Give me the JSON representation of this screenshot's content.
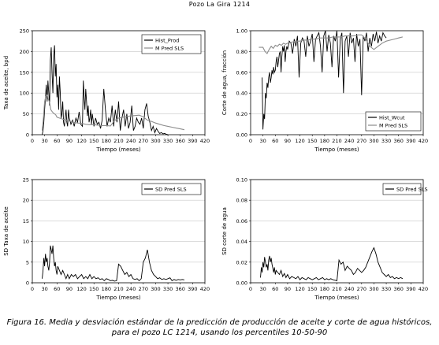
{
  "page": {
    "title": "Pozo La Gira 1214",
    "caption_line1": "Figura 16. Media y desviación estándar de la predicción de producción de aceite y corte de agua históricos,",
    "caption_line2": "para el pozo LC 1214, usando los percentiles 10-50-90"
  },
  "colors": {
    "hist": "#000000",
    "pred": "#8c8c8c",
    "grid": "#c8c8c8"
  },
  "chart_data": [
    {
      "type": "line",
      "xlabel": "Tiempo (meses)",
      "ylabel": "Taxa de aceite, bpd",
      "xlim": [
        0,
        420
      ],
      "ylim": [
        0,
        250
      ],
      "xticks": [
        0,
        30,
        60,
        90,
        120,
        150,
        180,
        210,
        240,
        270,
        300,
        330,
        360,
        390,
        420
      ],
      "yticks": [
        0,
        50,
        100,
        150,
        200,
        250
      ],
      "ytick_labels": [
        "0",
        "50",
        "100",
        "150",
        "200",
        "250"
      ],
      "legend": "top-right",
      "series": [
        {
          "name": "Hist_Prod",
          "color": "#000000",
          "x": [
            24,
            26,
            28,
            30,
            32,
            34,
            36,
            38,
            40,
            42,
            44,
            46,
            48,
            50,
            52,
            54,
            56,
            58,
            60,
            62,
            64,
            66,
            68,
            70,
            72,
            74,
            76,
            78,
            80,
            82,
            84,
            86,
            88,
            90,
            94,
            98,
            102,
            106,
            110,
            114,
            118,
            122,
            124,
            126,
            128,
            130,
            132,
            134,
            136,
            138,
            140,
            142,
            144,
            146,
            148,
            150,
            154,
            158,
            162,
            166,
            170,
            174,
            178,
            182,
            186,
            190,
            194,
            198,
            202,
            206,
            210,
            214,
            218,
            222,
            226,
            230,
            234,
            238,
            242,
            246,
            250,
            254,
            258,
            262,
            266,
            270,
            274,
            278,
            282,
            286,
            290,
            294,
            298,
            302,
            306,
            310,
            314,
            318,
            322,
            326,
            330
          ],
          "y": [
            0,
            10,
            30,
            60,
            90,
            120,
            80,
            130,
            100,
            70,
            180,
            210,
            150,
            100,
            190,
            215,
            140,
            170,
            90,
            120,
            60,
            140,
            100,
            40,
            50,
            80,
            30,
            20,
            40,
            60,
            30,
            20,
            60,
            40,
            25,
            35,
            20,
            40,
            30,
            55,
            25,
            20,
            130,
            90,
            60,
            110,
            80,
            45,
            70,
            30,
            40,
            60,
            25,
            50,
            35,
            20,
            40,
            25,
            30,
            15,
            35,
            110,
            60,
            20,
            40,
            30,
            70,
            20,
            60,
            30,
            80,
            10,
            40,
            60,
            20,
            50,
            15,
            30,
            70,
            10,
            20,
            40,
            30,
            25,
            40,
            15,
            60,
            75,
            45,
            30,
            10,
            20,
            5,
            15,
            8,
            3,
            5,
            2,
            3,
            1,
            0
          ]
        },
        {
          "name": "M Pred SLS",
          "color": "#8c8c8c",
          "x": [
            24,
            27,
            30,
            33,
            36,
            39,
            42,
            45,
            48,
            51,
            54,
            57,
            60,
            66,
            72,
            78,
            84,
            90,
            100,
            110,
            120,
            130,
            140,
            150,
            160,
            170,
            180,
            190,
            200,
            210,
            220,
            230,
            240,
            250,
            260,
            270,
            280,
            290,
            300,
            310,
            320,
            330,
            340,
            350,
            360,
            370
          ],
          "y": [
            10,
            40,
            80,
            93,
            95,
            85,
            78,
            60,
            56,
            52,
            50,
            48,
            42,
            40,
            38,
            36,
            35,
            33,
            30,
            28,
            27,
            25,
            24,
            24,
            23,
            22,
            22,
            21,
            34,
            40,
            42,
            44,
            45,
            46,
            47,
            43,
            35,
            32,
            28,
            25,
            22,
            20,
            18,
            16,
            14,
            12
          ]
        }
      ]
    },
    {
      "type": "line",
      "xlabel": "Tiempo (meses)",
      "ylabel": "Corte de agua, fracción",
      "xlim": [
        0,
        420
      ],
      "ylim": [
        0,
        1
      ],
      "xticks": [
        0,
        30,
        60,
        90,
        120,
        150,
        180,
        210,
        240,
        270,
        300,
        330,
        360,
        390,
        420
      ],
      "yticks": [
        0,
        0.2,
        0.4,
        0.6,
        0.8,
        1.0
      ],
      "ytick_labels": [
        "0.00",
        "0.20",
        "0.40",
        "0.60",
        "0.80",
        "1.00"
      ],
      "legend": "bottom-right",
      "series": [
        {
          "name": "Hist_Wcut",
          "color": "#000000",
          "x": [
            28,
            30,
            32,
            34,
            36,
            38,
            40,
            42,
            44,
            46,
            48,
            50,
            52,
            54,
            56,
            58,
            60,
            62,
            64,
            66,
            68,
            70,
            72,
            74,
            76,
            78,
            80,
            82,
            84,
            86,
            88,
            90,
            94,
            98,
            102,
            106,
            110,
            114,
            118,
            122,
            126,
            130,
            134,
            138,
            142,
            146,
            150,
            154,
            158,
            162,
            166,
            170,
            174,
            178,
            182,
            186,
            190,
            194,
            198,
            202,
            206,
            210,
            214,
            218,
            222,
            226,
            230,
            234,
            238,
            242,
            246,
            250,
            254,
            258,
            262,
            266,
            270,
            274,
            278,
            282,
            286,
            290,
            294,
            298,
            302,
            306,
            310,
            314,
            318,
            322,
            326,
            330
          ],
          "y": [
            0.55,
            0.05,
            0.2,
            0.15,
            0.4,
            0.35,
            0.5,
            0.45,
            0.55,
            0.6,
            0.5,
            0.55,
            0.62,
            0.58,
            0.65,
            0.6,
            0.62,
            0.7,
            0.75,
            0.65,
            0.72,
            0.78,
            0.8,
            0.6,
            0.75,
            0.85,
            0.8,
            0.86,
            0.7,
            0.8,
            0.85,
            0.82,
            0.9,
            0.88,
            0.78,
            0.92,
            0.85,
            0.95,
            0.55,
            0.88,
            0.93,
            0.9,
            0.75,
            0.95,
            0.85,
            0.9,
            0.97,
            0.7,
            0.92,
            0.95,
            0.98,
            0.85,
            0.6,
            0.95,
            1.0,
            0.8,
            0.96,
            0.88,
            0.65,
            0.95,
            0.9,
            1.0,
            0.55,
            0.92,
            0.98,
            0.4,
            0.9,
            0.95,
            0.75,
            0.98,
            0.88,
            0.93,
            0.7,
            0.97,
            0.85,
            0.92,
            0.38,
            0.95,
            0.9,
            0.98,
            0.8,
            0.93,
            0.85,
            0.97,
            0.9,
            0.99,
            0.88,
            0.95,
            0.9,
            0.98,
            0.95,
            0.93
          ]
        },
        {
          "name": "M Pred SLS",
          "color": "#8c8c8c",
          "x": [
            20,
            25,
            30,
            35,
            40,
            45,
            50,
            55,
            60,
            65,
            70,
            75,
            80,
            85,
            90,
            100,
            110,
            120,
            130,
            140,
            150,
            160,
            170,
            180,
            190,
            200,
            210,
            220,
            230,
            240,
            250,
            260,
            270,
            280,
            290,
            300,
            310,
            320,
            330,
            340,
            350,
            360,
            370
          ],
          "y": [
            0.84,
            0.84,
            0.84,
            0.8,
            0.78,
            0.82,
            0.85,
            0.83,
            0.86,
            0.85,
            0.87,
            0.86,
            0.88,
            0.87,
            0.88,
            0.89,
            0.9,
            0.9,
            0.91,
            0.91,
            0.92,
            0.92,
            0.93,
            0.93,
            0.93,
            0.94,
            0.94,
            0.94,
            0.95,
            0.95,
            0.95,
            0.96,
            0.96,
            0.92,
            0.85,
            0.82,
            0.85,
            0.88,
            0.9,
            0.91,
            0.92,
            0.93,
            0.94
          ]
        }
      ]
    },
    {
      "type": "line",
      "xlabel": "Tiempo (meses)",
      "ylabel": "SD Taxa de aceite",
      "xlim": [
        0,
        420
      ],
      "ylim": [
        0,
        25
      ],
      "xticks": [
        0,
        30,
        60,
        90,
        120,
        150,
        180,
        210,
        240,
        270,
        300,
        330,
        360,
        390,
        420
      ],
      "yticks": [
        0,
        5,
        10,
        15,
        20,
        25
      ],
      "ytick_labels": [
        "0",
        "5",
        "10",
        "15",
        "20",
        "25"
      ],
      "legend": "top-right",
      "series": [
        {
          "name": "SD Pred SLS",
          "color": "#000000",
          "x": [
            24,
            26,
            28,
            30,
            32,
            34,
            36,
            38,
            40,
            42,
            44,
            46,
            48,
            50,
            52,
            54,
            56,
            58,
            60,
            62,
            66,
            70,
            74,
            78,
            82,
            86,
            90,
            95,
            100,
            105,
            110,
            115,
            120,
            125,
            130,
            135,
            140,
            145,
            150,
            155,
            160,
            165,
            170,
            175,
            180,
            185,
            190,
            195,
            200,
            205,
            210,
            215,
            220,
            225,
            230,
            235,
            240,
            245,
            250,
            255,
            260,
            265,
            270,
            275,
            280,
            285,
            290,
            295,
            300,
            305,
            310,
            315,
            320,
            325,
            330,
            335,
            340,
            345,
            350,
            355,
            360,
            365,
            370
          ],
          "y": [
            1,
            3,
            6,
            4,
            7,
            5,
            6,
            4,
            3,
            5,
            9,
            8,
            7,
            9,
            6,
            4,
            5,
            3,
            2,
            4,
            3,
            2,
            3,
            2,
            1,
            2,
            1,
            2,
            1.5,
            2,
            1,
            1.5,
            2,
            1,
            1.5,
            1,
            2,
            1,
            1.5,
            1,
            1.2,
            0.8,
            1,
            0.5,
            1,
            0.8,
            0.5,
            0.6,
            0.4,
            0.5,
            4.5,
            4,
            3,
            2,
            2.5,
            1.5,
            2,
            1,
            0.8,
            1,
            0.5,
            1,
            5,
            6,
            8,
            5,
            3,
            2,
            1.5,
            1,
            1.2,
            0.8,
            1,
            0.8,
            1,
            1.2,
            0.5,
            0.8,
            0.6,
            0.8,
            0.7,
            0.8,
            0.7
          ]
        }
      ]
    },
    {
      "type": "line",
      "xlabel": "Tiempo (meses)",
      "ylabel": "SD corte de agua",
      "xlim": [
        0,
        420
      ],
      "ylim": [
        0,
        0.1
      ],
      "xticks": [
        0,
        30,
        60,
        90,
        120,
        150,
        180,
        210,
        240,
        270,
        300,
        330,
        360,
        390,
        420
      ],
      "yticks": [
        0,
        0.02,
        0.04,
        0.06,
        0.08,
        0.1
      ],
      "ytick_labels": [
        "0.00",
        "0.02",
        "0.04",
        "0.06",
        "0.08",
        "0.10"
      ],
      "legend": "top-right",
      "series": [
        {
          "name": "SD Pred SLS",
          "color": "#000000",
          "x": [
            24,
            26,
            28,
            30,
            32,
            34,
            36,
            38,
            40,
            42,
            44,
            46,
            48,
            50,
            52,
            54,
            56,
            58,
            60,
            62,
            66,
            70,
            74,
            78,
            82,
            86,
            90,
            95,
            100,
            105,
            110,
            115,
            120,
            125,
            130,
            135,
            140,
            145,
            150,
            155,
            160,
            165,
            170,
            175,
            180,
            185,
            190,
            195,
            200,
            210,
            215,
            220,
            225,
            230,
            235,
            240,
            245,
            250,
            255,
            260,
            265,
            270,
            275,
            280,
            285,
            290,
            295,
            300,
            305,
            310,
            315,
            320,
            325,
            330,
            335,
            340,
            345,
            350,
            355,
            360,
            365,
            370
          ],
          "y": [
            0.005,
            0.015,
            0.01,
            0.02,
            0.015,
            0.025,
            0.02,
            0.015,
            0.018,
            0.012,
            0.022,
            0.026,
            0.02,
            0.024,
            0.018,
            0.014,
            0.01,
            0.015,
            0.008,
            0.012,
            0.01,
            0.008,
            0.012,
            0.006,
            0.009,
            0.005,
            0.008,
            0.004,
            0.006,
            0.005,
            0.004,
            0.006,
            0.003,
            0.005,
            0.004,
            0.003,
            0.005,
            0.004,
            0.003,
            0.004,
            0.005,
            0.003,
            0.004,
            0.005,
            0.003,
            0.004,
            0.003,
            0.004,
            0.003,
            0.002,
            0.022,
            0.018,
            0.02,
            0.012,
            0.016,
            0.014,
            0.012,
            0.008,
            0.01,
            0.014,
            0.012,
            0.01,
            0.012,
            0.015,
            0.02,
            0.025,
            0.03,
            0.034,
            0.028,
            0.02,
            0.015,
            0.01,
            0.008,
            0.006,
            0.008,
            0.005,
            0.006,
            0.004,
            0.005,
            0.004,
            0.005,
            0.004
          ]
        }
      ]
    }
  ]
}
